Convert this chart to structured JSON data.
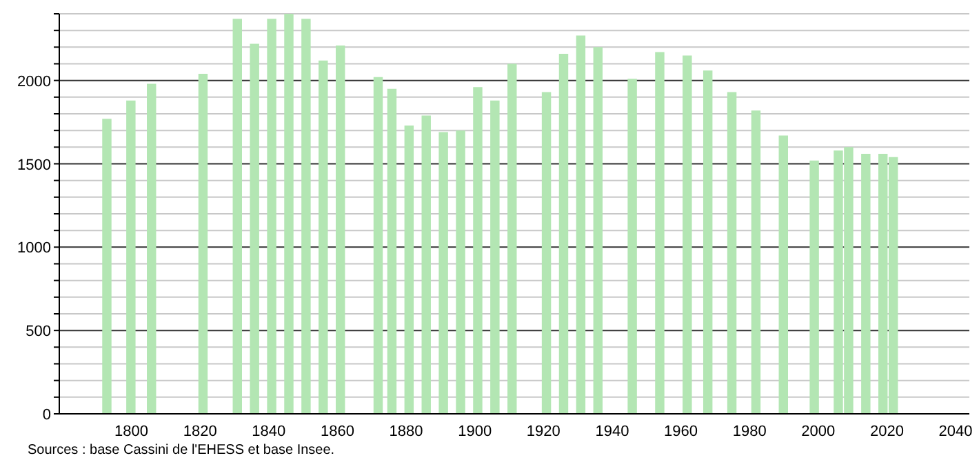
{
  "chart_data": {
    "type": "bar",
    "x": [
      1793,
      1800,
      1806,
      1821,
      1831,
      1836,
      1841,
      1846,
      1851,
      1856,
      1861,
      1872,
      1876,
      1881,
      1886,
      1891,
      1896,
      1901,
      1906,
      1911,
      1921,
      1926,
      1931,
      1936,
      1946,
      1954,
      1962,
      1968,
      1975,
      1982,
      1990,
      1999,
      2006,
      2009,
      2014,
      2019,
      2022
    ],
    "values": [
      1770,
      1880,
      1980,
      2040,
      2370,
      2220,
      2370,
      2400,
      2370,
      2120,
      2210,
      2020,
      1950,
      1730,
      1790,
      1690,
      1700,
      1960,
      1880,
      2100,
      1930,
      2160,
      2270,
      2200,
      2010,
      2170,
      2150,
      2060,
      1930,
      1820,
      1670,
      1520,
      1580,
      1600,
      1560,
      1560,
      1540
    ],
    "color": "#b3e6b3",
    "xlim": [
      1779,
      2044
    ],
    "xticks": [
      1800,
      1820,
      1840,
      1860,
      1880,
      1900,
      1920,
      1940,
      1960,
      1980,
      2000,
      2020,
      2040
    ],
    "ylim": [
      0,
      2400
    ],
    "yticks": [
      0,
      {
        "value": 100,
        "label": null
      },
      {
        "value": 200,
        "label": null
      },
      {
        "value": 300,
        "label": null
      },
      {
        "value": 400,
        "label": null
      },
      500,
      {
        "value": 600,
        "label": null
      },
      {
        "value": 700,
        "label": null
      },
      {
        "value": 800,
        "label": null
      },
      {
        "value": 900,
        "label": null
      },
      1000,
      {
        "value": 1100,
        "label": null
      },
      {
        "value": 1200,
        "label": null
      },
      {
        "value": 1300,
        "label": null
      },
      {
        "value": 1400,
        "label": null
      },
      1500,
      {
        "value": 1600,
        "label": null
      },
      {
        "value": 1700,
        "label": null
      },
      {
        "value": 1800,
        "label": null
      },
      {
        "value": 1900,
        "label": null
      },
      2000,
      {
        "value": 2100,
        "label": null
      },
      {
        "value": 2200,
        "label": null
      },
      {
        "value": 2300,
        "label": null
      },
      {
        "value": 2400,
        "label": null
      }
    ],
    "grid": "y",
    "annotations": [
      "Sources : base Cassini de l'EHESS et base Insee."
    ]
  }
}
